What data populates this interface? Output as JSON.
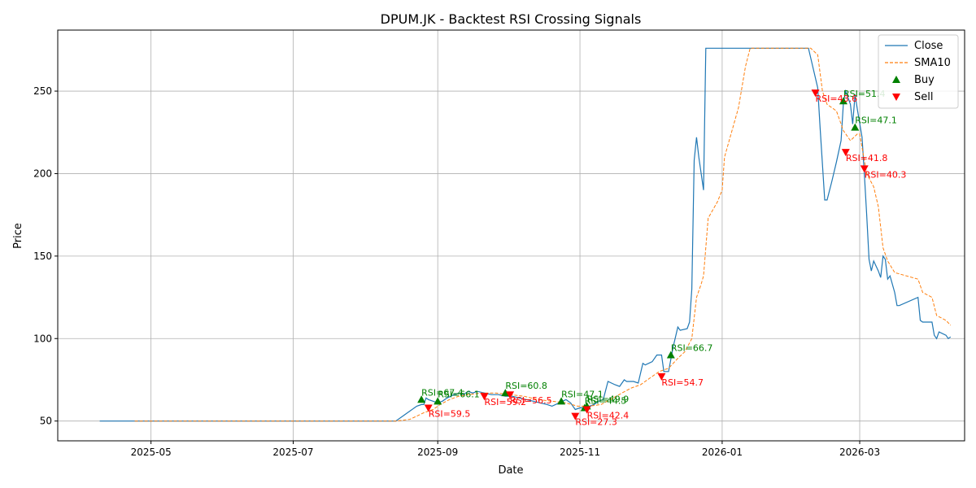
{
  "chart_data": {
    "type": "line",
    "title": "DPUM.JK - Backtest RSI Crossing Signals",
    "xlabel": "Date",
    "ylabel": "Price",
    "x_range": [
      "2025-03-22",
      "2026-04-15"
    ],
    "ylim": [
      38,
      287
    ],
    "x_ticks": [
      {
        "date": "2025-05-01",
        "label": "2025-05"
      },
      {
        "date": "2025-07-01",
        "label": "2025-07"
      },
      {
        "date": "2025-09-01",
        "label": "2025-09"
      },
      {
        "date": "2025-11-01",
        "label": "2025-11"
      },
      {
        "date": "2026-01-01",
        "label": "2026-01"
      },
      {
        "date": "2026-03-01",
        "label": "2026-03"
      }
    ],
    "y_ticks": [
      50,
      100,
      150,
      200,
      250
    ],
    "grid": true,
    "legend_position": "top-right",
    "legend": [
      "Close",
      "SMA10",
      "Buy",
      "Sell"
    ],
    "colors": {
      "close": "#1f77b4",
      "sma": "#ff7f0e",
      "buy": "#008000",
      "sell": "#ff0000"
    },
    "series": [
      {
        "name": "Close",
        "style": "solid",
        "points": [
          [
            "2025-04-09",
            50
          ],
          [
            "2025-08-14",
            50
          ],
          [
            "2025-08-17",
            53
          ],
          [
            "2025-08-20",
            56
          ],
          [
            "2025-08-23",
            59
          ],
          [
            "2025-08-25",
            60
          ],
          [
            "2025-08-26",
            60
          ],
          [
            "2025-08-27",
            64
          ],
          [
            "2025-08-28",
            63
          ],
          [
            "2025-08-30",
            62
          ],
          [
            "2025-09-01",
            61
          ],
          [
            "2025-09-03",
            62
          ],
          [
            "2025-09-05",
            64
          ],
          [
            "2025-09-08",
            66
          ],
          [
            "2025-09-10",
            67
          ],
          [
            "2025-09-12",
            66
          ],
          [
            "2025-09-14",
            68
          ],
          [
            "2025-09-16",
            67
          ],
          [
            "2025-09-18",
            68
          ],
          [
            "2025-09-21",
            67
          ],
          [
            "2025-09-24",
            66
          ],
          [
            "2025-09-27",
            66
          ],
          [
            "2025-09-30",
            65
          ],
          [
            "2025-10-03",
            65
          ],
          [
            "2025-10-06",
            64
          ],
          [
            "2025-10-09",
            63
          ],
          [
            "2025-10-12",
            62
          ],
          [
            "2025-10-15",
            61
          ],
          [
            "2025-10-18",
            60
          ],
          [
            "2025-10-20",
            59
          ],
          [
            "2025-10-23",
            61
          ],
          [
            "2025-10-26",
            63
          ],
          [
            "2025-10-28",
            61
          ],
          [
            "2025-10-30",
            57
          ],
          [
            "2025-11-01",
            58
          ],
          [
            "2025-11-03",
            58
          ],
          [
            "2025-11-05",
            59
          ],
          [
            "2025-11-07",
            60
          ],
          [
            "2025-11-09",
            62
          ],
          [
            "2025-11-11",
            63
          ],
          [
            "2025-11-13",
            74
          ],
          [
            "2025-11-16",
            72
          ],
          [
            "2025-11-18",
            71
          ],
          [
            "2025-11-20",
            75
          ],
          [
            "2025-11-21",
            74
          ],
          [
            "2025-11-24",
            74
          ],
          [
            "2025-11-26",
            73
          ],
          [
            "2025-11-28",
            85
          ],
          [
            "2025-11-29",
            84
          ],
          [
            "2025-12-02",
            86
          ],
          [
            "2025-12-04",
            90
          ],
          [
            "2025-12-06",
            90
          ],
          [
            "2025-12-07",
            80
          ],
          [
            "2025-12-09",
            80
          ],
          [
            "2025-12-11",
            95
          ],
          [
            "2025-12-13",
            107
          ],
          [
            "2025-12-14",
            105
          ],
          [
            "2025-12-17",
            106
          ],
          [
            "2025-12-18",
            110
          ],
          [
            "2025-12-19",
            130
          ],
          [
            "2025-12-20",
            208
          ],
          [
            "2025-12-21",
            222
          ],
          [
            "2025-12-22",
            210
          ],
          [
            "2025-12-23",
            200
          ],
          [
            "2025-12-24",
            190
          ],
          [
            "2025-12-25",
            276
          ],
          [
            "2026-02-07",
            276
          ],
          [
            "2026-02-11",
            252
          ],
          [
            "2026-02-12",
            228
          ],
          [
            "2026-02-14",
            184
          ],
          [
            "2026-02-15",
            184
          ],
          [
            "2026-02-17",
            195
          ],
          [
            "2026-02-19",
            207
          ],
          [
            "2026-02-21",
            220
          ],
          [
            "2026-02-22",
            243
          ],
          [
            "2026-02-23",
            250
          ],
          [
            "2026-02-25",
            242
          ],
          [
            "2026-02-26",
            230
          ],
          [
            "2026-02-27",
            248
          ],
          [
            "2026-02-28",
            239
          ],
          [
            "2026-03-02",
            222
          ],
          [
            "2026-03-03",
            200
          ],
          [
            "2026-03-04",
            175
          ],
          [
            "2026-03-05",
            148
          ],
          [
            "2026-03-06",
            141
          ],
          [
            "2026-03-07",
            147
          ],
          [
            "2026-03-09",
            141
          ],
          [
            "2026-03-10",
            137
          ],
          [
            "2026-03-11",
            150
          ],
          [
            "2026-03-12",
            148
          ],
          [
            "2026-03-13",
            136
          ],
          [
            "2026-03-14",
            138
          ],
          [
            "2026-03-16",
            128
          ],
          [
            "2026-03-17",
            120
          ],
          [
            "2026-03-18",
            120
          ],
          [
            "2026-03-26",
            125
          ],
          [
            "2026-03-27",
            111
          ],
          [
            "2026-03-28",
            110
          ],
          [
            "2026-04-01",
            110
          ],
          [
            "2026-04-02",
            102
          ],
          [
            "2026-04-03",
            100
          ],
          [
            "2026-04-04",
            104
          ],
          [
            "2026-04-07",
            102
          ],
          [
            "2026-04-08",
            100
          ],
          [
            "2026-04-09",
            101
          ]
        ]
      },
      {
        "name": "SMA10",
        "style": "dashed",
        "points": [
          [
            "2025-04-24",
            50
          ],
          [
            "2025-08-14",
            50
          ],
          [
            "2025-08-20",
            51
          ],
          [
            "2025-08-23",
            53
          ],
          [
            "2025-08-26",
            55
          ],
          [
            "2025-08-30",
            57
          ],
          [
            "2025-09-02",
            60
          ],
          [
            "2025-09-06",
            63
          ],
          [
            "2025-09-10",
            65
          ],
          [
            "2025-09-14",
            66
          ],
          [
            "2025-09-20",
            67
          ],
          [
            "2025-09-26",
            67
          ],
          [
            "2025-10-02",
            66
          ],
          [
            "2025-10-08",
            65
          ],
          [
            "2025-10-14",
            63
          ],
          [
            "2025-10-20",
            62
          ],
          [
            "2025-10-26",
            61
          ],
          [
            "2025-10-31",
            59
          ],
          [
            "2025-11-05",
            59
          ],
          [
            "2025-11-10",
            60
          ],
          [
            "2025-11-14",
            63
          ],
          [
            "2025-11-19",
            67
          ],
          [
            "2025-11-23",
            70
          ],
          [
            "2025-11-27",
            72
          ],
          [
            "2025-12-01",
            76
          ],
          [
            "2025-12-05",
            80
          ],
          [
            "2025-12-09",
            82
          ],
          [
            "2025-12-13",
            88
          ],
          [
            "2025-12-16",
            92
          ],
          [
            "2025-12-19",
            100
          ],
          [
            "2025-12-21",
            125
          ],
          [
            "2025-12-23",
            133
          ],
          [
            "2025-12-24",
            138
          ],
          [
            "2025-12-26",
            173
          ],
          [
            "2025-12-30",
            183
          ],
          [
            "2026-01-01",
            190
          ],
          [
            "2026-01-02",
            210
          ],
          [
            "2026-01-05",
            225
          ],
          [
            "2026-01-08",
            240
          ],
          [
            "2026-01-11",
            265
          ],
          [
            "2026-01-13",
            276
          ],
          [
            "2026-02-08",
            276
          ],
          [
            "2026-02-11",
            272
          ],
          [
            "2026-02-13",
            250
          ],
          [
            "2026-02-15",
            242
          ],
          [
            "2026-02-19",
            238
          ],
          [
            "2026-02-22",
            226
          ],
          [
            "2026-02-25",
            220
          ],
          [
            "2026-02-28",
            224
          ],
          [
            "2026-03-01",
            224
          ],
          [
            "2026-03-04",
            200
          ],
          [
            "2026-03-07",
            192
          ],
          [
            "2026-03-09",
            180
          ],
          [
            "2026-03-11",
            155
          ],
          [
            "2026-03-13",
            147
          ],
          [
            "2026-03-16",
            140
          ],
          [
            "2026-03-26",
            136
          ],
          [
            "2026-03-28",
            128
          ],
          [
            "2026-04-01",
            125
          ],
          [
            "2026-04-03",
            114
          ],
          [
            "2026-04-07",
            111
          ],
          [
            "2026-04-09",
            108
          ]
        ]
      }
    ],
    "buy_signals": [
      {
        "date": "2025-08-25",
        "price": 63,
        "label": "RSI=67.4"
      },
      {
        "date": "2025-09-01",
        "price": 62,
        "label": "RSI=66.1"
      },
      {
        "date": "2025-09-30",
        "price": 67,
        "label": "RSI=60.8"
      },
      {
        "date": "2025-10-24",
        "price": 62,
        "label": "RSI=47.1"
      },
      {
        "date": "2025-11-03",
        "price": 58,
        "label": "RSI=44.5"
      },
      {
        "date": "2025-11-04",
        "price": 59,
        "label": "RSI=49.9"
      },
      {
        "date": "2025-12-10",
        "price": 90,
        "label": "RSI=66.7"
      },
      {
        "date": "2026-02-22",
        "price": 244,
        "label": "RSI=51.4"
      },
      {
        "date": "2026-02-27",
        "price": 228,
        "label": "RSI=47.1"
      }
    ],
    "sell_signals": [
      {
        "date": "2025-08-28",
        "price": 58,
        "label": "RSI=59.5"
      },
      {
        "date": "2025-09-21",
        "price": 65,
        "label": "RSI=59.2"
      },
      {
        "date": "2025-10-02",
        "price": 66,
        "label": "RSI=56.5"
      },
      {
        "date": "2025-10-30",
        "price": 53,
        "label": "RSI=27.3"
      },
      {
        "date": "2025-11-04",
        "price": 57,
        "label": "RSI=42.4"
      },
      {
        "date": "2025-12-06",
        "price": 77,
        "label": "RSI=54.7"
      },
      {
        "date": "2026-02-10",
        "price": 249,
        "label": "RSI=43.6"
      },
      {
        "date": "2026-02-23",
        "price": 213,
        "label": "RSI=41.8"
      },
      {
        "date": "2026-03-03",
        "price": 203,
        "label": "RSI=40.3"
      }
    ]
  }
}
